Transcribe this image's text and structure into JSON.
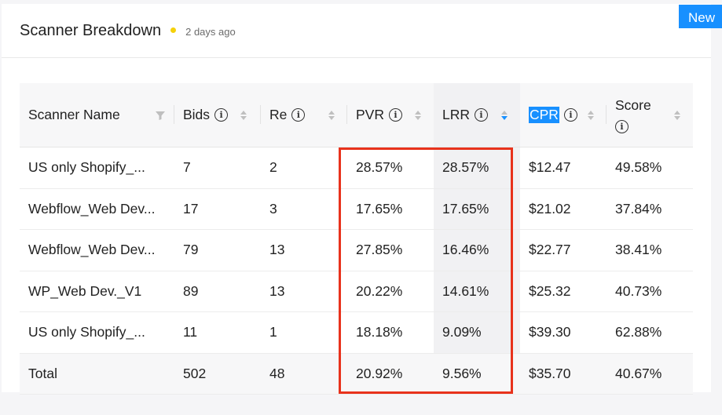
{
  "colors": {
    "accent": "#1890ff",
    "status_dot": "#f5d10a",
    "annotation_box": "#e8321c",
    "sort_active": "#1890ff"
  },
  "header": {
    "title": "Scanner Breakdown",
    "timestamp": "2 days ago",
    "new_button": "New"
  },
  "table": {
    "columns": [
      {
        "label": "Scanner Name",
        "icon": "filter-icon"
      },
      {
        "label": "Bids",
        "icon": "info-icon"
      },
      {
        "label": "Re",
        "icon": "info-icon"
      },
      {
        "label": "PVR",
        "icon": "info-icon"
      },
      {
        "label": "LRR",
        "icon": "info-icon",
        "sort": "descending"
      },
      {
        "label": "CPR",
        "icon": "info-icon",
        "text_selected": true
      },
      {
        "label": "Score",
        "icon": "info-icon"
      }
    ],
    "rows": [
      [
        "US only Shopify_...",
        "7",
        "2",
        "28.57%",
        "28.57%",
        "$12.47",
        "49.58%"
      ],
      [
        "Webflow_Web Dev...",
        "17",
        "3",
        "17.65%",
        "17.65%",
        "$21.02",
        "37.84%"
      ],
      [
        "Webflow_Web Dev...",
        "79",
        "13",
        "27.85%",
        "16.46%",
        "$22.77",
        "38.41%"
      ],
      [
        "WP_Web Dev._V1",
        "89",
        "13",
        "20.22%",
        "14.61%",
        "$25.32",
        "40.73%"
      ],
      [
        "US only Shopify_...",
        "11",
        "1",
        "18.18%",
        "9.09%",
        "$39.30",
        "62.88%"
      ]
    ],
    "total": [
      "Total",
      "502",
      "48",
      "20.92%",
      "9.56%",
      "$35.70",
      "40.67%"
    ]
  }
}
